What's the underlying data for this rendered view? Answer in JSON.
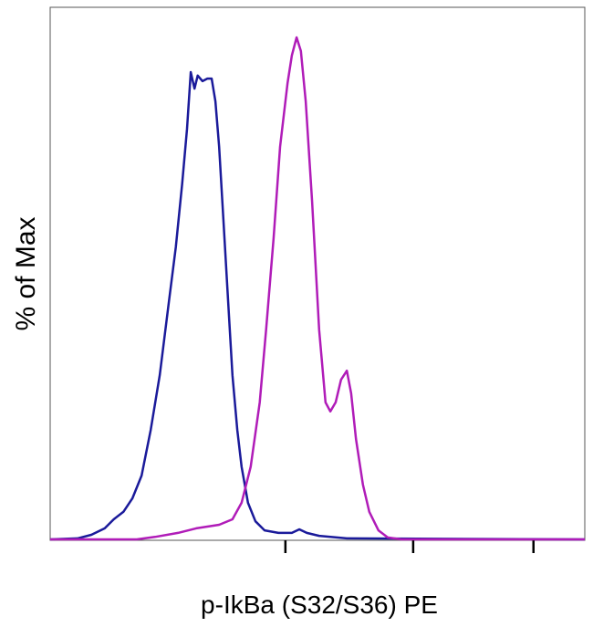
{
  "chart_data": {
    "type": "line",
    "x_label": "p-IkBa (S32/S36) PE",
    "y_label": "% of Max",
    "xlim": [
      0,
      100
    ],
    "ylim": [
      0,
      106
    ],
    "xticks": [
      44.0,
      67.9,
      90.4
    ],
    "series": [
      {
        "color": "#1a1a9a",
        "x": [
          0,
          5.1,
          7.7,
          10.2,
          11.9,
          13.7,
          15.4,
          17.1,
          18.8,
          20.5,
          22.2,
          23.5,
          24.7,
          25.6,
          26.3,
          27.0,
          27.6,
          28.5,
          29.4,
          30.2,
          30.9,
          31.6,
          32.4,
          33.3,
          34.1,
          35.0,
          35.8,
          37.0,
          38.4,
          40.1,
          42.7,
          45.2,
          46.6,
          48.0,
          50.3,
          55.5,
          100
        ],
        "values": [
          0,
          0.2,
          0.9,
          2.2,
          4.0,
          5.5,
          8.2,
          12.7,
          21.8,
          32.7,
          47.3,
          58.2,
          70.9,
          81.8,
          93.1,
          89.8,
          92.4,
          91.3,
          91.8,
          91.8,
          87.3,
          78.2,
          63.6,
          47.3,
          32.7,
          21.8,
          14.5,
          7.3,
          3.6,
          1.8,
          1.3,
          1.3,
          2.0,
          1.3,
          0.7,
          0.2,
          0
        ]
      },
      {
        "color": "#b01cb8",
        "x": [
          0,
          16.2,
          19.6,
          23.9,
          27.3,
          31.6,
          34.1,
          35.8,
          37.5,
          39.2,
          40.4,
          41.8,
          43.0,
          44.4,
          45.2,
          46.1,
          46.9,
          47.8,
          49.0,
          50.3,
          51.5,
          52.4,
          53.4,
          54.4,
          55.5,
          56.3,
          57.2,
          58.5,
          59.7,
          61.4,
          63.1,
          65.7,
          100
        ],
        "values": [
          0,
          0,
          0.5,
          1.3,
          2.2,
          2.9,
          4.0,
          7.3,
          14.5,
          27.3,
          41.8,
          60.0,
          78.2,
          90.9,
          96.4,
          100,
          97.3,
          87.3,
          67.3,
          41.8,
          27.3,
          25.5,
          27.3,
          31.8,
          33.6,
          29.1,
          20.0,
          10.9,
          5.5,
          1.8,
          0.4,
          0,
          0
        ]
      }
    ]
  }
}
